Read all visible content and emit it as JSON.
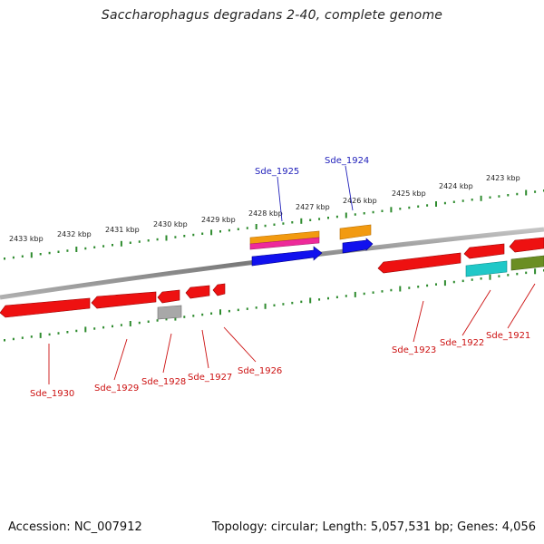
{
  "title": "Saccharophagus degradans 2-40, complete genome",
  "footer": {
    "accession": "Accession: NC_007912",
    "summary": "Topology: circular; Length: 5,057,531 bp; Genes: 4,056"
  },
  "scale": {
    "tick_labels": [
      "2433 kbp",
      "2432 kbp",
      "2431 kbp",
      "2430 kbp",
      "2429 kbp",
      "2428 kbp",
      "2427 kbp",
      "2426 kbp",
      "2425 kbp",
      "2424 kbp",
      "2423 kbp"
    ]
  },
  "gene_labels": {
    "forward": [
      "Sde_1925",
      "Sde_1924"
    ],
    "reverse": [
      "Sde_1930",
      "Sde_1929",
      "Sde_1928",
      "Sde_1927",
      "Sde_1926",
      "Sde_1923",
      "Sde_1922",
      "Sde_1921"
    ]
  },
  "colors": {
    "backbone": "#8a8a8a",
    "tick": "#2e8b2e",
    "gene_red": "#ee1111",
    "gene_blue": "#1111ee",
    "gene_orange": "#f29a10",
    "gene_magenta": "#ee2a9a",
    "gene_cyan": "#20c8c8",
    "gene_olive": "#6b8e23",
    "gene_gray": "#a8a8a8",
    "label_forward": "#2222bb",
    "label_reverse": "#cc1111"
  }
}
